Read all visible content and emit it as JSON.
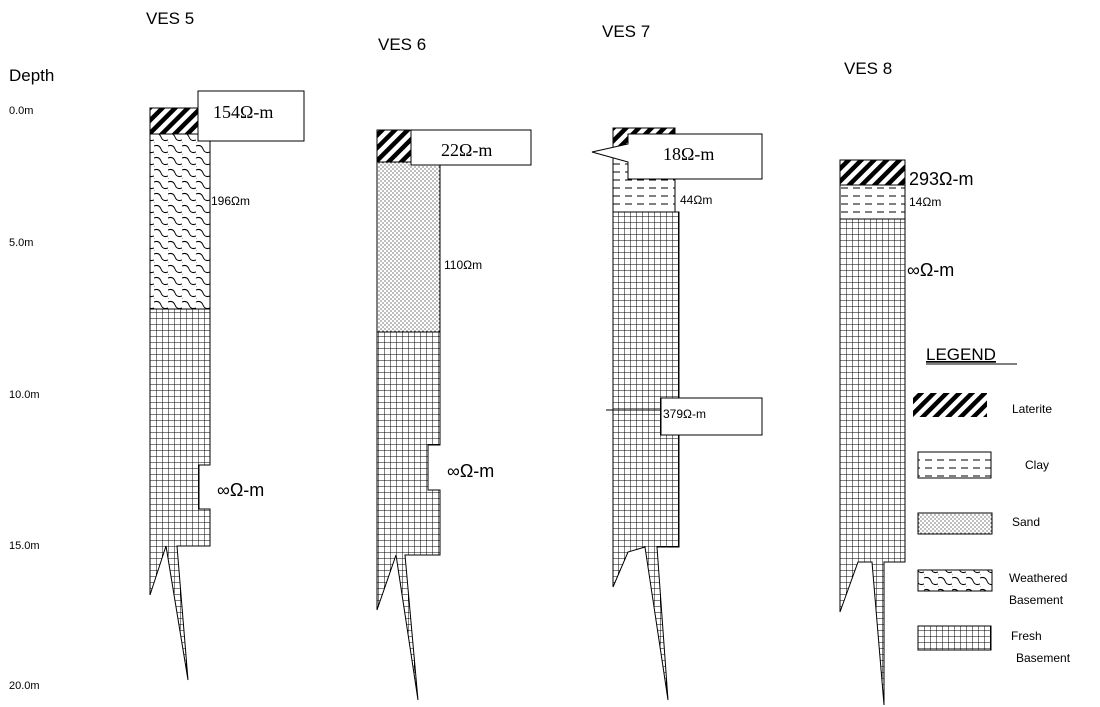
{
  "depth_axis": {
    "title": "Depth",
    "ticks": [
      "0.0m",
      "5.0m",
      "10.0m",
      "15.0m",
      "20.0m"
    ]
  },
  "columns": [
    {
      "title": "VES 5",
      "layers": [
        {
          "material": "laterite",
          "top_m": 0.0,
          "bottom_m": 1.3,
          "resistivity": "154Ω-m"
        },
        {
          "material": "weathered-basement",
          "top_m": 1.3,
          "bottom_m": 8.2,
          "resistivity": "196Ωm"
        },
        {
          "material": "fresh-basement",
          "top_m": 8.2,
          "bottom_m": 16.8,
          "resistivity": "∞Ω-m"
        }
      ]
    },
    {
      "title": "VES 6",
      "layers": [
        {
          "material": "laterite",
          "top_m": 1.0,
          "bottom_m": 2.5,
          "resistivity": "22Ω-m"
        },
        {
          "material": "sand",
          "top_m": 2.5,
          "bottom_m": 9.2,
          "resistivity": "110Ωm"
        },
        {
          "material": "fresh-basement",
          "top_m": 9.2,
          "bottom_m": 17.5,
          "resistivity": "∞Ω-m"
        }
      ]
    },
    {
      "title": "VES 7",
      "layers": [
        {
          "material": "laterite",
          "top_m": 1.0,
          "bottom_m": 2.3,
          "resistivity": "18Ω-m"
        },
        {
          "material": "clay",
          "top_m": 2.3,
          "bottom_m": 4.6,
          "resistivity": "44Ωm"
        },
        {
          "material": "fresh-basement",
          "top_m": 4.6,
          "bottom_m": 16.9,
          "resistivity": "379Ω-m"
        }
      ]
    },
    {
      "title": "VES 8",
      "layers": [
        {
          "material": "laterite",
          "top_m": 2.1,
          "bottom_m": 3.2,
          "resistivity": "293Ω-m"
        },
        {
          "material": "clay",
          "top_m": 3.2,
          "bottom_m": 4.7,
          "resistivity": "14Ωm"
        },
        {
          "material": "fresh-basement",
          "top_m": 4.7,
          "bottom_m": 16.8,
          "resistivity": "∞Ω-m"
        }
      ]
    }
  ],
  "legend": {
    "title": "LEGEND",
    "items": [
      {
        "material": "laterite",
        "label": "Laterite"
      },
      {
        "material": "clay",
        "label": "Clay"
      },
      {
        "material": "sand",
        "label": "Sand"
      },
      {
        "material": "weathered-basement",
        "label": "Weathered Basement"
      },
      {
        "material": "fresh-basement",
        "label": "Fresh Basement"
      }
    ]
  },
  "colors": {
    "ink": "#000000",
    "background": "#ffffff"
  }
}
